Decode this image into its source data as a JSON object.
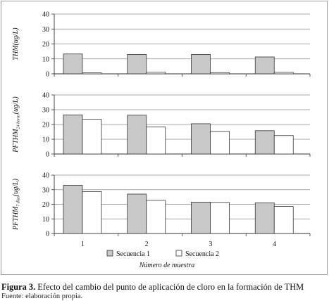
{
  "chart_data": [
    {
      "type": "bar",
      "ylabel": "THM(ug/L)",
      "categories": [
        "1",
        "2",
        "3",
        "4"
      ],
      "ylim": [
        0,
        40
      ],
      "yticks": [
        0,
        10,
        20,
        30,
        40
      ],
      "series": [
        {
          "name": "Secuencia 1",
          "color": "#c8c8c8",
          "values": [
            13.3,
            13.0,
            13.0,
            11.3
          ]
        },
        {
          "name": "Secuencia 2",
          "color": "#ffffff",
          "values": [
            0.7,
            1.1,
            0.8,
            1.0
          ]
        }
      ]
    },
    {
      "type": "bar",
      "ylabel_parts": {
        "main": "PFTHM",
        "sub": "24 horas",
        "unit": "(ug/L)"
      },
      "categories": [
        "1",
        "2",
        "3",
        "4"
      ],
      "ylim": [
        0,
        40
      ],
      "yticks": [
        0,
        10,
        20,
        30,
        40
      ],
      "series": [
        {
          "name": "Secuencia 1",
          "color": "#c8c8c8",
          "values": [
            26.5,
            26.3,
            20.5,
            15.8
          ]
        },
        {
          "name": "Secuencia 2",
          "color": "#ffffff",
          "values": [
            23.5,
            18.3,
            15.3,
            12.5
          ]
        }
      ]
    },
    {
      "type": "bar",
      "ylabel_parts": {
        "main": "PFTHM",
        "sub": "7 días",
        "unit": "(ug/L)"
      },
      "categories": [
        "1",
        "2",
        "3",
        "4"
      ],
      "ylim": [
        0,
        40
      ],
      "yticks": [
        0,
        10,
        20,
        30,
        40
      ],
      "xlabel": "Número de muestra",
      "series": [
        {
          "name": "Secuencia 1",
          "color": "#c8c8c8",
          "values": [
            33.0,
            27.0,
            21.5,
            21.0
          ]
        },
        {
          "name": "Secuencia 2",
          "color": "#ffffff",
          "values": [
            28.7,
            22.7,
            21.3,
            18.5
          ]
        }
      ]
    }
  ],
  "legend": {
    "items": [
      {
        "label": "Secuencia 1",
        "color": "#c8c8c8"
      },
      {
        "label": "Secuencia 2",
        "color": "#ffffff"
      }
    ],
    "placement": "bottom"
  },
  "caption": {
    "figure_label": "Figura 3.",
    "text": " Efecto del cambio del punto de aplicación de cloro en la formación de THM",
    "source": "Fuente: elaboración propia."
  }
}
